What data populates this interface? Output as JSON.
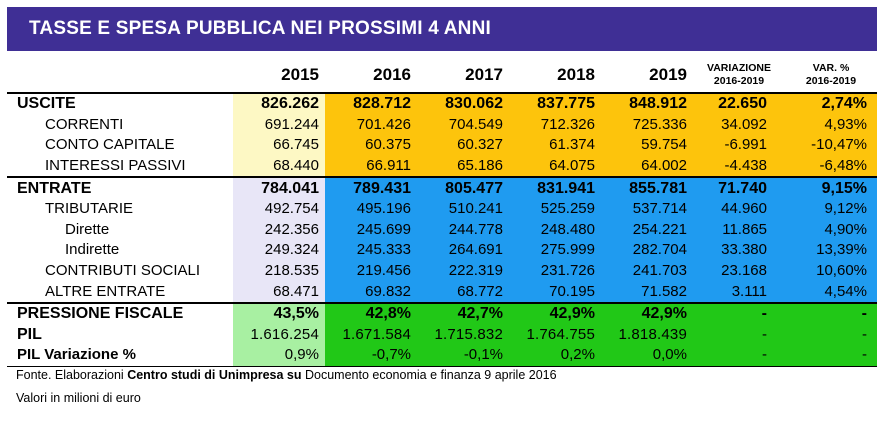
{
  "title": "TASSE E SPESA PUBBLICA NEI PROSSIMI 4 ANNI",
  "headers": {
    "y2015": "2015",
    "y2016": "2016",
    "y2017": "2017",
    "y2018": "2018",
    "y2019": "2019",
    "var_l1": "VARIAZIONE",
    "var_l2": "2016-2019",
    "pct_l1": "VAR. %",
    "pct_l2": "2016-2019"
  },
  "rows": [
    {
      "label": "USCITE",
      "v": [
        "826.262",
        "828.712",
        "830.062",
        "837.775",
        "848.912"
      ],
      "var": "22.650",
      "pct": "2,74%"
    },
    {
      "label": "CORRENTI",
      "v": [
        "691.244",
        "701.426",
        "704.549",
        "712.326",
        "725.336"
      ],
      "var": "34.092",
      "pct": "4,93%"
    },
    {
      "label": "CONTO CAPITALE",
      "v": [
        "66.745",
        "60.375",
        "60.327",
        "61.374",
        "59.754"
      ],
      "var": "-6.991",
      "pct": "-10,47%"
    },
    {
      "label": "INTERESSI PASSIVI",
      "v": [
        "68.440",
        "66.911",
        "65.186",
        "64.075",
        "64.002"
      ],
      "var": "-4.438",
      "pct": "-6,48%"
    },
    {
      "label": "ENTRATE",
      "v": [
        "784.041",
        "789.431",
        "805.477",
        "831.941",
        "855.781"
      ],
      "var": "71.740",
      "pct": "9,15%"
    },
    {
      "label": "TRIBUTARIE",
      "v": [
        "492.754",
        "495.196",
        "510.241",
        "525.259",
        "537.714"
      ],
      "var": "44.960",
      "pct": "9,12%"
    },
    {
      "label": "Dirette",
      "v": [
        "242.356",
        "245.699",
        "244.778",
        "248.480",
        "254.221"
      ],
      "var": "11.865",
      "pct": "4,90%"
    },
    {
      "label": "Indirette",
      "v": [
        "249.324",
        "245.333",
        "264.691",
        "275.999",
        "282.704"
      ],
      "var": "33.380",
      "pct": "13,39%"
    },
    {
      "label": "CONTRIBUTI SOCIALI",
      "v": [
        "218.535",
        "219.456",
        "222.319",
        "231.726",
        "241.703"
      ],
      "var": "23.168",
      "pct": "10,60%"
    },
    {
      "label": "ALTRE ENTRATE",
      "v": [
        "68.471",
        "69.832",
        "68.772",
        "70.195",
        "71.582"
      ],
      "var": "3.111",
      "pct": "4,54%"
    },
    {
      "label": "PRESSIONE FISCALE",
      "v": [
        "43,5%",
        "42,8%",
        "42,7%",
        "42,9%",
        "42,9%"
      ],
      "var": "-",
      "pct": "-"
    },
    {
      "label": "PIL",
      "v": [
        "1.616.254",
        "1.671.584",
        "1.715.832",
        "1.764.755",
        "1.818.439"
      ],
      "var": "-",
      "pct": "-"
    },
    {
      "label": "PIL Variazione %",
      "v": [
        "0,9%",
        "-0,7%",
        "-0,1%",
        "0,2%",
        "0,0%"
      ],
      "var": "-",
      "pct": "-"
    }
  ],
  "footer": {
    "fonte_a": "Fonte. Elaborazioni ",
    "fonte_b": "Centro studi di Unimpresa su",
    "fonte_c": " Documento economia e finanza 9 aprile 2016",
    "valori": "Valori in milioni di euro"
  }
}
